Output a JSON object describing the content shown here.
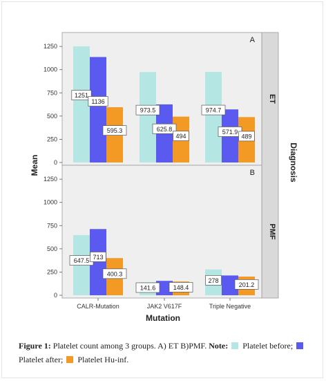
{
  "chart_data": {
    "type": "bar",
    "categories": [
      "CALR-Mutation",
      "JAK2 V617F",
      "Triple Negative"
    ],
    "xlabel": "Mutation",
    "ylabel": "Mean",
    "facet_label": "Diagnosis",
    "ylim": [
      0,
      1400
    ],
    "yticks": [
      0,
      250,
      500,
      750,
      1000,
      1250
    ],
    "colors": {
      "before": "#b4e6e3",
      "after": "#5a5af0",
      "huinf": "#f39a24",
      "panel_bg": "#efefef",
      "axis_strip": "#d9d9d9"
    },
    "panels": [
      {
        "tag": "A",
        "facet": "ET",
        "series": [
          {
            "values": [
              1251,
              973.5,
              974.7
            ],
            "labels": [
              "1251",
              "973.5",
              "974.7"
            ]
          },
          {
            "values": [
              1136,
              625.8,
              571.9
            ],
            "labels": [
              "1136",
              "625.8",
              "571.9"
            ]
          },
          {
            "values": [
              595.3,
              494,
              489
            ],
            "labels": [
              "595.3",
              "494",
              "489"
            ]
          }
        ]
      },
      {
        "tag": "B",
        "facet": "PMF",
        "series": [
          {
            "values": [
              647.5,
              141.6,
              278
            ],
            "labels": [
              "647.5",
              "141.6",
              "278"
            ]
          },
          {
            "values": [
              713,
              155,
              213
            ],
            "labels": [
              "713",
              "",
              ""
            ]
          },
          {
            "values": [
              400.3,
              148.4,
              201.2
            ],
            "labels": [
              "400.3",
              "148.4",
              "201.2"
            ]
          }
        ]
      }
    ]
  },
  "caption": {
    "figure_label": "Figure 1:",
    "text": " Platelet count among 3 groups. A) ET B)PMF. ",
    "note_label": "Note:",
    "legend": [
      {
        "key": "before",
        "text": "Platelet before;"
      },
      {
        "key": "after",
        "text": "Platelet after;"
      },
      {
        "key": "huinf",
        "text": "Platelet Hu-inf."
      }
    ]
  }
}
